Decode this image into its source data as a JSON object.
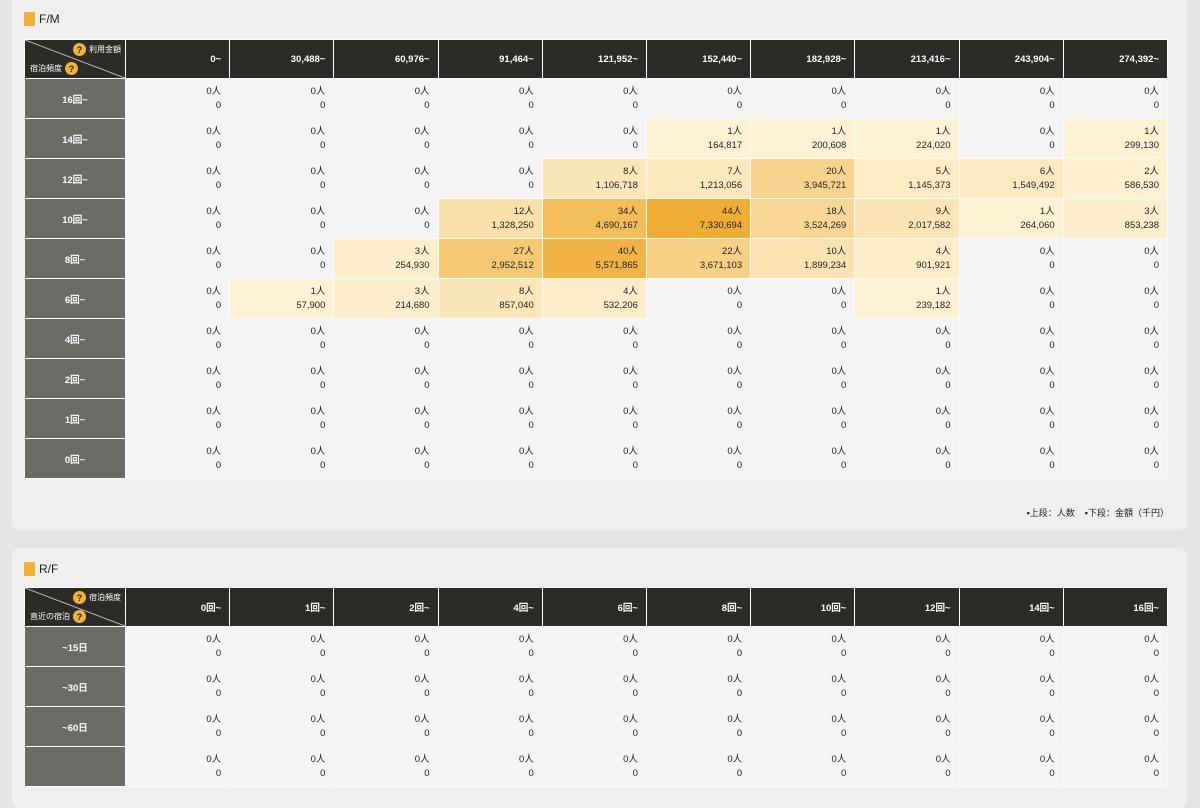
{
  "fm": {
    "title": "F/M",
    "corner_top": "利用金額",
    "corner_bottom": "宿泊頻度",
    "help_icon": "?",
    "columns": [
      "0~",
      "30,488~",
      "60,976~",
      "91,464~",
      "121,952~",
      "152,440~",
      "182,928~",
      "213,416~",
      "243,904~",
      "274,392~"
    ],
    "rows": [
      {
        "label": "16回~",
        "cells": [
          [
            0,
            "0"
          ],
          [
            0,
            "0"
          ],
          [
            0,
            "0"
          ],
          [
            0,
            "0"
          ],
          [
            0,
            "0"
          ],
          [
            0,
            "0"
          ],
          [
            0,
            "0"
          ],
          [
            0,
            "0"
          ],
          [
            0,
            "0"
          ],
          [
            0,
            "0"
          ]
        ]
      },
      {
        "label": "14回~",
        "cells": [
          [
            0,
            "0"
          ],
          [
            0,
            "0"
          ],
          [
            0,
            "0"
          ],
          [
            0,
            "0"
          ],
          [
            0,
            "0"
          ],
          [
            1,
            "164,817"
          ],
          [
            1,
            "200,608"
          ],
          [
            1,
            "224,020"
          ],
          [
            0,
            "0"
          ],
          [
            1,
            "299,130"
          ]
        ]
      },
      {
        "label": "12回~",
        "cells": [
          [
            0,
            "0"
          ],
          [
            0,
            "0"
          ],
          [
            0,
            "0"
          ],
          [
            0,
            "0"
          ],
          [
            8,
            "1,106,718"
          ],
          [
            7,
            "1,213,056"
          ],
          [
            20,
            "3,945,721"
          ],
          [
            5,
            "1,145,373"
          ],
          [
            6,
            "1,549,492"
          ],
          [
            2,
            "586,530"
          ]
        ]
      },
      {
        "label": "10回~",
        "cells": [
          [
            0,
            "0"
          ],
          [
            0,
            "0"
          ],
          [
            0,
            "0"
          ],
          [
            12,
            "1,328,250"
          ],
          [
            34,
            "4,690,167"
          ],
          [
            44,
            "7,330,694"
          ],
          [
            18,
            "3,524,269"
          ],
          [
            9,
            "2,017,582"
          ],
          [
            1,
            "264,060"
          ],
          [
            3,
            "853,238"
          ]
        ]
      },
      {
        "label": "8回~",
        "cells": [
          [
            0,
            "0"
          ],
          [
            0,
            "0"
          ],
          [
            3,
            "254,930"
          ],
          [
            27,
            "2,952,512"
          ],
          [
            40,
            "5,571,865"
          ],
          [
            22,
            "3,671,103"
          ],
          [
            10,
            "1,899,234"
          ],
          [
            4,
            "901,921"
          ],
          [
            0,
            "0"
          ],
          [
            0,
            "0"
          ]
        ]
      },
      {
        "label": "6回~",
        "cells": [
          [
            0,
            "0"
          ],
          [
            1,
            "57,900"
          ],
          [
            3,
            "214,680"
          ],
          [
            8,
            "857,040"
          ],
          [
            4,
            "532,206"
          ],
          [
            0,
            "0"
          ],
          [
            0,
            "0"
          ],
          [
            1,
            "239,182"
          ],
          [
            0,
            "0"
          ],
          [
            0,
            "0"
          ]
        ]
      },
      {
        "label": "4回~",
        "cells": [
          [
            0,
            "0"
          ],
          [
            0,
            "0"
          ],
          [
            0,
            "0"
          ],
          [
            0,
            "0"
          ],
          [
            0,
            "0"
          ],
          [
            0,
            "0"
          ],
          [
            0,
            "0"
          ],
          [
            0,
            "0"
          ],
          [
            0,
            "0"
          ],
          [
            0,
            "0"
          ]
        ]
      },
      {
        "label": "2回~",
        "cells": [
          [
            0,
            "0"
          ],
          [
            0,
            "0"
          ],
          [
            0,
            "0"
          ],
          [
            0,
            "0"
          ],
          [
            0,
            "0"
          ],
          [
            0,
            "0"
          ],
          [
            0,
            "0"
          ],
          [
            0,
            "0"
          ],
          [
            0,
            "0"
          ],
          [
            0,
            "0"
          ]
        ]
      },
      {
        "label": "1回~",
        "cells": [
          [
            0,
            "0"
          ],
          [
            0,
            "0"
          ],
          [
            0,
            "0"
          ],
          [
            0,
            "0"
          ],
          [
            0,
            "0"
          ],
          [
            0,
            "0"
          ],
          [
            0,
            "0"
          ],
          [
            0,
            "0"
          ],
          [
            0,
            "0"
          ],
          [
            0,
            "0"
          ]
        ]
      },
      {
        "label": "0回~",
        "cells": [
          [
            0,
            "0"
          ],
          [
            0,
            "0"
          ],
          [
            0,
            "0"
          ],
          [
            0,
            "0"
          ],
          [
            0,
            "0"
          ],
          [
            0,
            "0"
          ],
          [
            0,
            "0"
          ],
          [
            0,
            "0"
          ],
          [
            0,
            "0"
          ],
          [
            0,
            "0"
          ]
        ]
      }
    ],
    "legend_top": "▪上段：人数",
    "legend_bottom": "▪下段：金額（千円）"
  },
  "rf": {
    "title": "R/F",
    "corner_top": "宿泊頻度",
    "corner_bottom": "直近の宿泊",
    "help_icon": "?",
    "columns": [
      "0回~",
      "1回~",
      "2回~",
      "4回~",
      "6回~",
      "8回~",
      "10回~",
      "12回~",
      "14回~",
      "16回~"
    ],
    "rows": [
      {
        "label": "~15日",
        "cells": [
          [
            0,
            "0"
          ],
          [
            0,
            "0"
          ],
          [
            0,
            "0"
          ],
          [
            0,
            "0"
          ],
          [
            0,
            "0"
          ],
          [
            0,
            "0"
          ],
          [
            0,
            "0"
          ],
          [
            0,
            "0"
          ],
          [
            0,
            "0"
          ],
          [
            0,
            "0"
          ]
        ]
      },
      {
        "label": "~30日",
        "cells": [
          [
            0,
            "0"
          ],
          [
            0,
            "0"
          ],
          [
            0,
            "0"
          ],
          [
            0,
            "0"
          ],
          [
            0,
            "0"
          ],
          [
            0,
            "0"
          ],
          [
            0,
            "0"
          ],
          [
            0,
            "0"
          ],
          [
            0,
            "0"
          ],
          [
            0,
            "0"
          ]
        ]
      },
      {
        "label": "~60日",
        "cells": [
          [
            0,
            "0"
          ],
          [
            0,
            "0"
          ],
          [
            0,
            "0"
          ],
          [
            0,
            "0"
          ],
          [
            0,
            "0"
          ],
          [
            0,
            "0"
          ],
          [
            0,
            "0"
          ],
          [
            0,
            "0"
          ],
          [
            0,
            "0"
          ],
          [
            0,
            "0"
          ]
        ]
      },
      {
        "label": "",
        "cells": [
          [
            0,
            "0"
          ],
          [
            0,
            "0"
          ],
          [
            0,
            "0"
          ],
          [
            0,
            "0"
          ],
          [
            0,
            "0"
          ],
          [
            0,
            "0"
          ],
          [
            0,
            "0"
          ],
          [
            0,
            "0"
          ],
          [
            0,
            "0"
          ],
          [
            0,
            "0"
          ]
        ]
      }
    ]
  },
  "unit_people": "人",
  "colors": {
    "empty": "#f4f4f4",
    "low": "#fdf1d3",
    "high": "#f0ad36",
    "header": "#2d2b27",
    "row_header": "#6b6a64",
    "accent": "#f2b13a"
  },
  "max_count": 44
}
